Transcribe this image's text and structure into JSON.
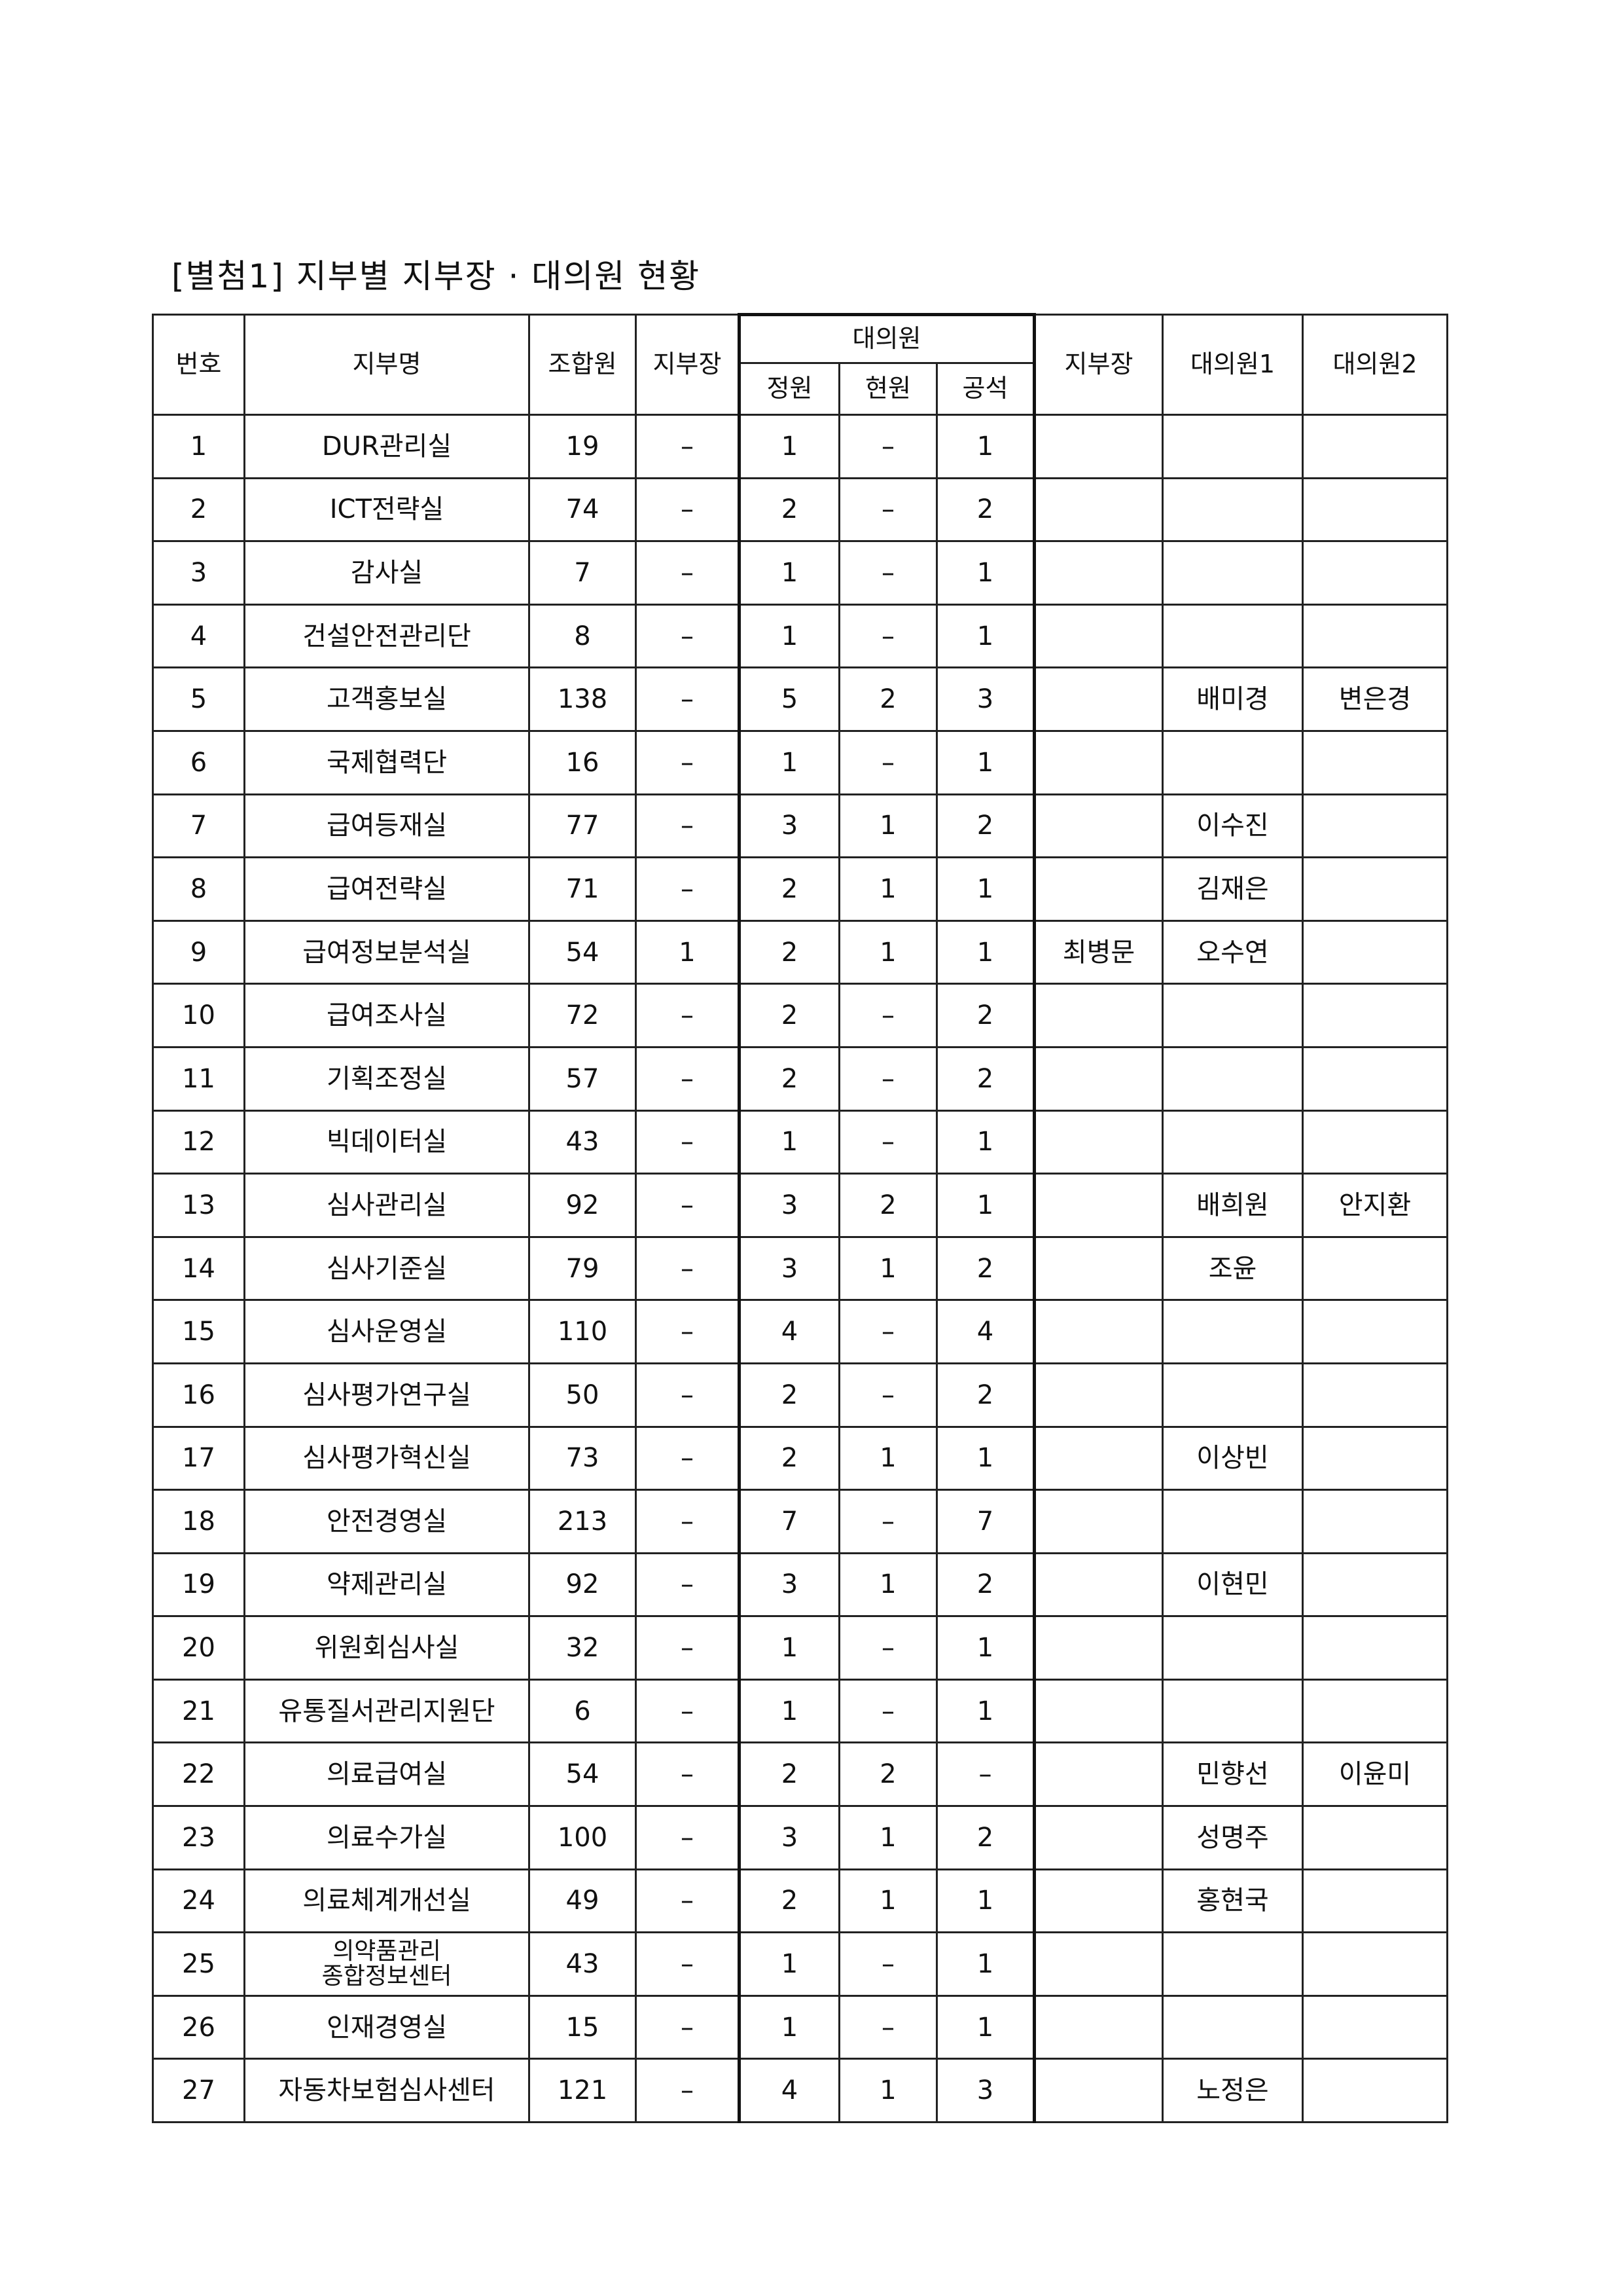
{
  "title": "[별첨1] 지부별 지부장 · 대의원 현황",
  "headers": {
    "no": "번호",
    "branch": "지부명",
    "members": "조합원",
    "chief_count": "지부장",
    "delegates": "대의원",
    "quota": "정원",
    "current": "현원",
    "vacancy": "공석",
    "chief_name": "지부장",
    "delegate1": "대의원1",
    "delegate2": "대의원2"
  },
  "rows": [
    {
      "no": "1",
      "branch": "DUR관리실",
      "members": "19",
      "chief": "–",
      "quota": "1",
      "current": "–",
      "vacancy": "1",
      "chief_name": "",
      "d1": "",
      "d2": ""
    },
    {
      "no": "2",
      "branch": "ICT전략실",
      "members": "74",
      "chief": "–",
      "quota": "2",
      "current": "–",
      "vacancy": "2",
      "chief_name": "",
      "d1": "",
      "d2": ""
    },
    {
      "no": "3",
      "branch": "감사실",
      "members": "7",
      "chief": "–",
      "quota": "1",
      "current": "–",
      "vacancy": "1",
      "chief_name": "",
      "d1": "",
      "d2": ""
    },
    {
      "no": "4",
      "branch": "건설안전관리단",
      "members": "8",
      "chief": "–",
      "quota": "1",
      "current": "–",
      "vacancy": "1",
      "chief_name": "",
      "d1": "",
      "d2": ""
    },
    {
      "no": "5",
      "branch": "고객홍보실",
      "members": "138",
      "chief": "–",
      "quota": "5",
      "current": "2",
      "vacancy": "3",
      "chief_name": "",
      "d1": "배미경",
      "d2": "변은경"
    },
    {
      "no": "6",
      "branch": "국제협력단",
      "members": "16",
      "chief": "–",
      "quota": "1",
      "current": "–",
      "vacancy": "1",
      "chief_name": "",
      "d1": "",
      "d2": ""
    },
    {
      "no": "7",
      "branch": "급여등재실",
      "members": "77",
      "chief": "–",
      "quota": "3",
      "current": "1",
      "vacancy": "2",
      "chief_name": "",
      "d1": "이수진",
      "d2": ""
    },
    {
      "no": "8",
      "branch": "급여전략실",
      "members": "71",
      "chief": "–",
      "quota": "2",
      "current": "1",
      "vacancy": "1",
      "chief_name": "",
      "d1": "김재은",
      "d2": ""
    },
    {
      "no": "9",
      "branch": "급여정보분석실",
      "members": "54",
      "chief": "1",
      "quota": "2",
      "current": "1",
      "vacancy": "1",
      "chief_name": "최병문",
      "d1": "오수연",
      "d2": ""
    },
    {
      "no": "10",
      "branch": "급여조사실",
      "members": "72",
      "chief": "–",
      "quota": "2",
      "current": "–",
      "vacancy": "2",
      "chief_name": "",
      "d1": "",
      "d2": ""
    },
    {
      "no": "11",
      "branch": "기획조정실",
      "members": "57",
      "chief": "–",
      "quota": "2",
      "current": "–",
      "vacancy": "2",
      "chief_name": "",
      "d1": "",
      "d2": ""
    },
    {
      "no": "12",
      "branch": "빅데이터실",
      "members": "43",
      "chief": "–",
      "quota": "1",
      "current": "–",
      "vacancy": "1",
      "chief_name": "",
      "d1": "",
      "d2": ""
    },
    {
      "no": "13",
      "branch": "심사관리실",
      "members": "92",
      "chief": "–",
      "quota": "3",
      "current": "2",
      "vacancy": "1",
      "chief_name": "",
      "d1": "배희원",
      "d2": "안지환"
    },
    {
      "no": "14",
      "branch": "심사기준실",
      "members": "79",
      "chief": "–",
      "quota": "3",
      "current": "1",
      "vacancy": "2",
      "chief_name": "",
      "d1": "조윤",
      "d2": ""
    },
    {
      "no": "15",
      "branch": "심사운영실",
      "members": "110",
      "chief": "–",
      "quota": "4",
      "current": "–",
      "vacancy": "4",
      "chief_name": "",
      "d1": "",
      "d2": ""
    },
    {
      "no": "16",
      "branch": "심사평가연구실",
      "members": "50",
      "chief": "–",
      "quota": "2",
      "current": "–",
      "vacancy": "2",
      "chief_name": "",
      "d1": "",
      "d2": ""
    },
    {
      "no": "17",
      "branch": "심사평가혁신실",
      "members": "73",
      "chief": "–",
      "quota": "2",
      "current": "1",
      "vacancy": "1",
      "chief_name": "",
      "d1": "이상빈",
      "d2": ""
    },
    {
      "no": "18",
      "branch": "안전경영실",
      "members": "213",
      "chief": "–",
      "quota": "7",
      "current": "–",
      "vacancy": "7",
      "chief_name": "",
      "d1": "",
      "d2": ""
    },
    {
      "no": "19",
      "branch": "약제관리실",
      "members": "92",
      "chief": "–",
      "quota": "3",
      "current": "1",
      "vacancy": "2",
      "chief_name": "",
      "d1": "이현민",
      "d2": ""
    },
    {
      "no": "20",
      "branch": "위원회심사실",
      "members": "32",
      "chief": "–",
      "quota": "1",
      "current": "–",
      "vacancy": "1",
      "chief_name": "",
      "d1": "",
      "d2": ""
    },
    {
      "no": "21",
      "branch": "유통질서관리지원단",
      "members": "6",
      "chief": "–",
      "quota": "1",
      "current": "–",
      "vacancy": "1",
      "chief_name": "",
      "d1": "",
      "d2": ""
    },
    {
      "no": "22",
      "branch": "의료급여실",
      "members": "54",
      "chief": "–",
      "quota": "2",
      "current": "2",
      "vacancy": "–",
      "chief_name": "",
      "d1": "민향선",
      "d2": "이윤미"
    },
    {
      "no": "23",
      "branch": "의료수가실",
      "members": "100",
      "chief": "–",
      "quota": "3",
      "current": "1",
      "vacancy": "2",
      "chief_name": "",
      "d1": "성명주",
      "d2": ""
    },
    {
      "no": "24",
      "branch": "의료체계개선실",
      "members": "49",
      "chief": "–",
      "quota": "2",
      "current": "1",
      "vacancy": "1",
      "chief_name": "",
      "d1": "홍현국",
      "d2": ""
    },
    {
      "no": "25",
      "branch": "의약품관리 종합정보센터",
      "members": "43",
      "chief": "–",
      "quota": "1",
      "current": "–",
      "vacancy": "1",
      "chief_name": "",
      "d1": "",
      "d2": ""
    },
    {
      "no": "26",
      "branch": "인재경영실",
      "members": "15",
      "chief": "–",
      "quota": "1",
      "current": "–",
      "vacancy": "1",
      "chief_name": "",
      "d1": "",
      "d2": ""
    },
    {
      "no": "27",
      "branch": "자동차보험심사센터",
      "members": "121",
      "chief": "–",
      "quota": "4",
      "current": "1",
      "vacancy": "3",
      "chief_name": "",
      "d1": "노정은",
      "d2": ""
    }
  ]
}
